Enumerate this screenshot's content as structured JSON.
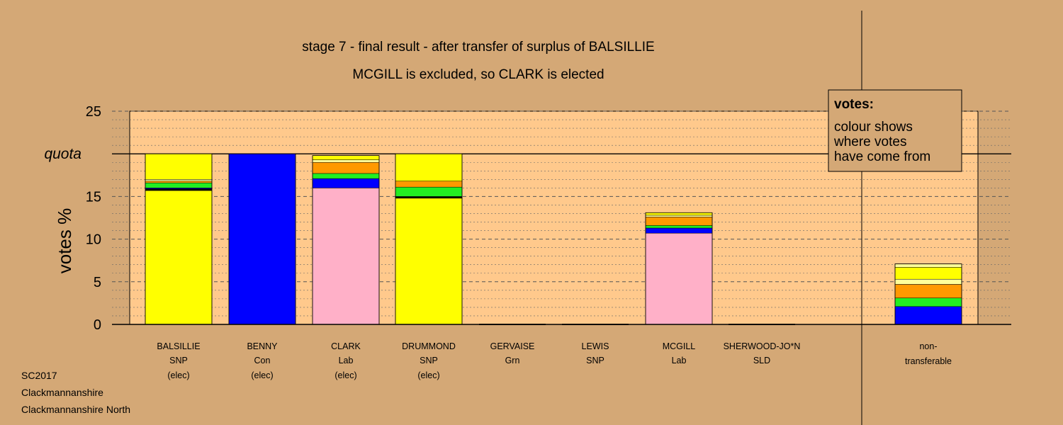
{
  "chart_data": {
    "type": "bar",
    "title": "stage 7 - final result - after transfer of surplus of BALSILLIE",
    "subtitle": "MCGILL is excluded, so CLARK is elected",
    "ylabel": "votes %",
    "ylim": [
      0,
      25
    ],
    "yticks": [
      "0",
      "5",
      "10",
      "15",
      "20",
      "25"
    ],
    "quota": 20,
    "quota_label": "quota",
    "legend": {
      "title": "votes:",
      "lines": [
        "colour shows",
        "where votes",
        "have come from"
      ]
    },
    "colors": {
      "yellow": "#FFFF00",
      "blue": "#0000FF",
      "pink": "#FFB0C8",
      "green": "#22EE22",
      "orange": "#FF9900",
      "pale_yellow": "#FFFF99",
      "black": "#000000",
      "background": "#D4A876",
      "plot": "#FFC98C"
    },
    "candidates": [
      {
        "name": "BALSILLIE",
        "party": "SNP",
        "status": "(elec)",
        "segments": [
          {
            "color": "yellow",
            "v": 15.7
          },
          {
            "color": "black",
            "v": 0.2
          },
          {
            "color": "blue",
            "v": 0.1
          },
          {
            "color": "green",
            "v": 0.6
          },
          {
            "color": "orange",
            "v": 0.2
          },
          {
            "color": "pale_yellow",
            "v": 0.2
          },
          {
            "color": "yellow",
            "v": 3.0
          }
        ]
      },
      {
        "name": "BENNY",
        "party": "Con",
        "status": "(elec)",
        "segments": [
          {
            "color": "blue",
            "v": 20.0
          }
        ]
      },
      {
        "name": "CLARK",
        "party": "Lab",
        "status": "(elec)",
        "segments": [
          {
            "color": "pink",
            "v": 16.0
          },
          {
            "color": "blue",
            "v": 1.1
          },
          {
            "color": "green",
            "v": 0.6
          },
          {
            "color": "orange",
            "v": 1.3
          },
          {
            "color": "pale_yellow",
            "v": 0.3
          },
          {
            "color": "yellow",
            "v": 0.5
          }
        ]
      },
      {
        "name": "DRUMMOND",
        "party": "SNP",
        "status": "(elec)",
        "segments": [
          {
            "color": "yellow",
            "v": 14.8
          },
          {
            "color": "black",
            "v": 0.2
          },
          {
            "color": "green",
            "v": 1.1
          },
          {
            "color": "orange",
            "v": 0.7
          },
          {
            "color": "yellow",
            "v": 3.2
          }
        ]
      },
      {
        "name": "GERVAISE",
        "party": "Grn",
        "status": "",
        "segments": []
      },
      {
        "name": "LEWIS",
        "party": "SNP",
        "status": "",
        "segments": []
      },
      {
        "name": "MCGILL",
        "party": "Lab",
        "status": "",
        "segments": [
          {
            "color": "pink",
            "v": 10.7
          },
          {
            "color": "blue",
            "v": 0.6
          },
          {
            "color": "green",
            "v": 0.3
          },
          {
            "color": "orange",
            "v": 1.0
          },
          {
            "color": "pale_yellow",
            "v": 0.2
          },
          {
            "color": "yellow",
            "v": 0.3
          }
        ]
      },
      {
        "name": "SHERWOOD-JO*N",
        "party": "SLD",
        "status": "",
        "segments": []
      }
    ],
    "nontransferable": {
      "name": "non-",
      "party": "transferable",
      "segments": [
        {
          "color": "blue",
          "v": 2.1
        },
        {
          "color": "green",
          "v": 1.0
        },
        {
          "color": "orange",
          "v": 1.6
        },
        {
          "color": "pale_yellow",
          "v": 0.6
        },
        {
          "color": "yellow",
          "v": 1.4
        },
        {
          "color": "pale_yellow",
          "v": 0.4
        }
      ]
    }
  },
  "footer": {
    "line1": "SC2017",
    "line2": "Clackmannanshire",
    "line3": "Clackmannanshire North"
  }
}
